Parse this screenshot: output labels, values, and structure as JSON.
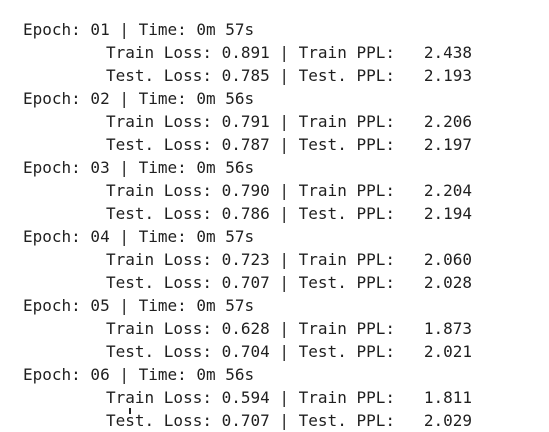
{
  "log": {
    "epochs": [
      {
        "header": "Epoch: 01 | Time: 0m 57s",
        "train": "Train Loss: 0.891 | Train PPL:   2.438",
        "test": "Test. Loss: 0.785 | Test. PPL:   2.193"
      },
      {
        "header": "Epoch: 02 | Time: 0m 56s",
        "train": "Train Loss: 0.791 | Train PPL:   2.206",
        "test": "Test. Loss: 0.787 | Test. PPL:   2.197"
      },
      {
        "header": "Epoch: 03 | Time: 0m 56s",
        "train": "Train Loss: 0.790 | Train PPL:   2.204",
        "test": "Test. Loss: 0.786 | Test. PPL:   2.194"
      },
      {
        "header": "Epoch: 04 | Time: 0m 57s",
        "train": "Train Loss: 0.723 | Train PPL:   2.060",
        "test": "Test. Loss: 0.707 | Test. PPL:   2.028"
      },
      {
        "header": "Epoch: 05 | Time: 0m 57s",
        "train": "Train Loss: 0.628 | Train PPL:   1.873",
        "test": "Test. Loss: 0.704 | Test. PPL:   2.021"
      },
      {
        "header": "Epoch: 06 | Time: 0m 56s",
        "train": "Train Loss: 0.594 | Train PPL:   1.811",
        "test": "Test. Loss: 0.707 | Test. PPL:   2.029"
      }
    ]
  }
}
